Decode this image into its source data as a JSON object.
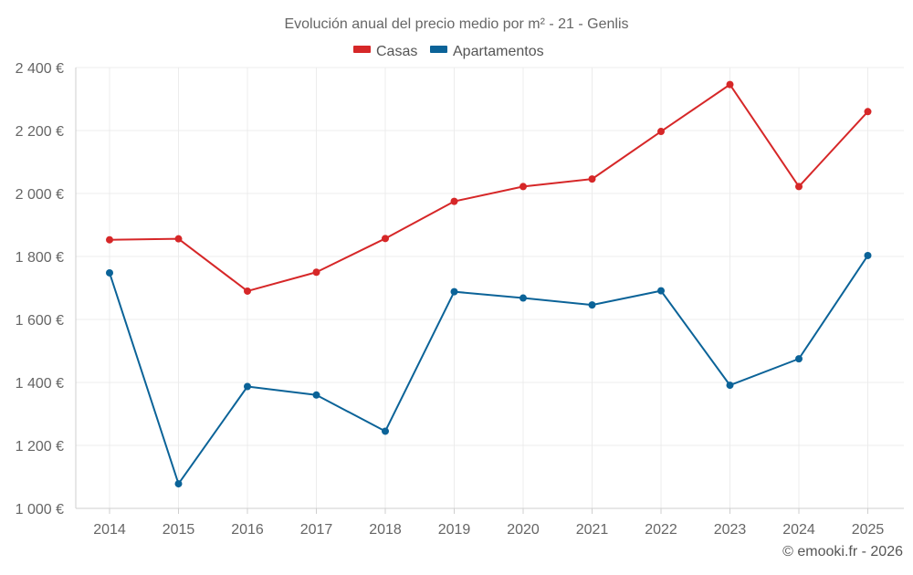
{
  "chart_data": {
    "type": "line",
    "title": "Evolución anual del precio medio por m² - 21 - Genlis",
    "categories": [
      "2014",
      "2015",
      "2016",
      "2017",
      "2018",
      "2019",
      "2020",
      "2021",
      "2022",
      "2023",
      "2024",
      "2025"
    ],
    "series": [
      {
        "name": "Casas",
        "color": "#d62728",
        "values": [
          1853,
          1856,
          1690,
          1750,
          1857,
          1975,
          2022,
          2046,
          2197,
          2346,
          2022,
          2260
        ]
      },
      {
        "name": "Apartamentos",
        "color": "#0b6398",
        "values": [
          1748,
          1078,
          1387,
          1360,
          1245,
          1688,
          1668,
          1646,
          1691,
          1391,
          1475,
          1803
        ]
      }
    ],
    "ylim": [
      1000,
      2400
    ],
    "yticks": [
      1000,
      1200,
      1400,
      1600,
      1800,
      2000,
      2200,
      2400
    ],
    "ytick_labels": [
      "1 000 €",
      "1 200 €",
      "1 400 €",
      "1 600 €",
      "1 800 €",
      "2 000 €",
      "2 200 €",
      "2 400 €"
    ],
    "xlabel": "",
    "ylabel": "",
    "grid": true,
    "legend_position": "top-center"
  },
  "credit": "© emooki.fr - 2026"
}
